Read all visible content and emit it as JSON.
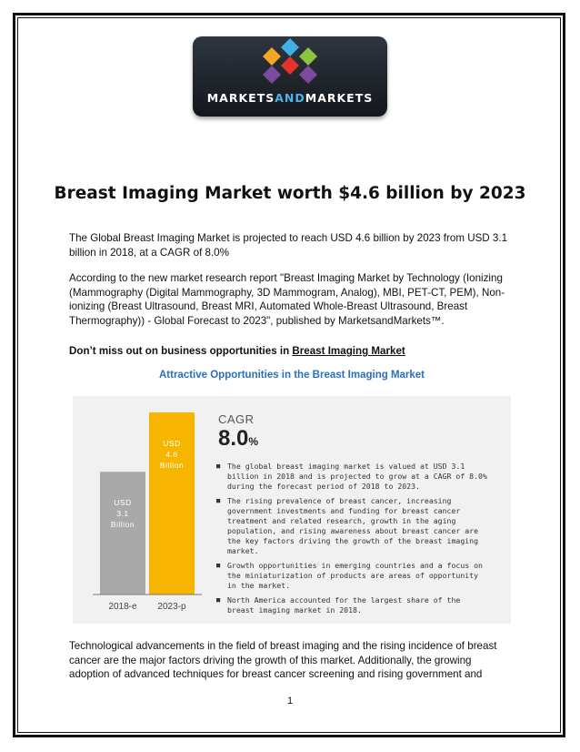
{
  "logo": {
    "text_part1": "MARKETS",
    "text_part2": "AND",
    "text_part3": "MARKETS",
    "colors": [
      "#f5a623",
      "#3eb0e6",
      "#8bc53f",
      "#e5322d",
      "#7a4b9e"
    ]
  },
  "document": {
    "title": "Breast Imaging Market worth $4.6 billion by 2023",
    "paragraph1": "The Global Breast Imaging Market is projected to reach USD 4.6 billion by 2023 from USD 3.1 billion in 2018, at a CAGR of 8.0%",
    "paragraph2": "According to the new market research report \"Breast Imaging Market by Technology (Ionizing (Mammography (Digital Mammography, 3D Mammogram, Analog), MBI, PET-CT, PEM), Non-ionizing (Breast Ultrasound, Breast MRI, Automated Whole-Breast Ultrasound, Breast Thermography)) - Global Forecast to 2023\", published by MarketsandMarkets™.",
    "cta_text": "Don’t miss out on business opportunities in ",
    "cta_link": "Breast Imaging Market",
    "paragraph3": "Technological advancements in the field of breast imaging and the rising incidence of breast cancer are the major factors driving the growth of this market. Additionally, the growing adoption of advanced techniques for breast cancer screening and rising government and",
    "page_number": "1"
  },
  "figure": {
    "title": "Attractive Opportunities in the Breast Imaging Market",
    "cagr_label": "CAGR",
    "cagr_value": "8.0",
    "cagr_unit": "%",
    "bullets": [
      "The global breast imaging market is valued at USD 3.1 billion in 2018 and is projected to grow at a CAGR of 8.0% during the forecast period of 2018 to 2023.",
      "The rising prevalence of breast cancer, increasing government investments and funding for breast cancer treatment and related research, growth in the aging population, and rising awareness about breast cancer are the key factors driving the growth of the breast imaging market.",
      "Growth opportunities in emerging countries and a focus on the miniaturization of products are areas of opportunity in the market.",
      "North America accounted for the largest share of the breast imaging market in 2018."
    ]
  },
  "chart_data": {
    "type": "bar",
    "categories": [
      "2018-e",
      "2023-p"
    ],
    "values": [
      3.1,
      4.6
    ],
    "bar_labels": [
      [
        "USD",
        "3.1",
        "Billion"
      ],
      [
        "USD",
        "4.6",
        "Billion"
      ]
    ],
    "bar_colors": [
      "#a9a9a9",
      "#f7b500"
    ],
    "ylim": [
      0,
      4.6
    ]
  }
}
